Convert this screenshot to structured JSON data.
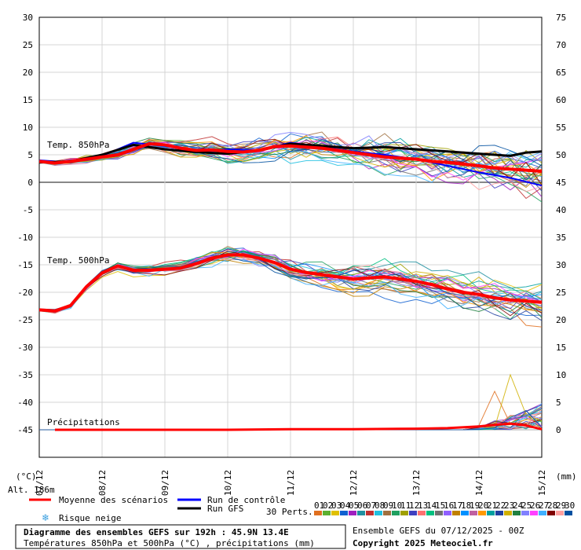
{
  "chart_data": {
    "type": "line",
    "left_axis": {
      "unit": "(°C)",
      "min": -50,
      "max": 30,
      "ticks": [
        30,
        25,
        20,
        15,
        10,
        5,
        0,
        -5,
        -10,
        -15,
        -20,
        -25,
        -30,
        -35,
        -40,
        -45
      ]
    },
    "right_axis": {
      "unit": "(mm)",
      "ticks": [
        75,
        70,
        65,
        60,
        55,
        50,
        45,
        40,
        35,
        30,
        25,
        20,
        15,
        10,
        5,
        0
      ],
      "tick_values_left": [
        30,
        25,
        20,
        15,
        10,
        5,
        0,
        -5,
        -10,
        -15,
        -20,
        -25,
        -30,
        -35,
        -40,
        -45
      ]
    },
    "x_axis": {
      "min": 0,
      "max": 8,
      "date_labels": [
        "07/12",
        "08/12",
        "09/12",
        "10/12",
        "11/12",
        "12/12",
        "13/12",
        "14/12",
        "15/12"
      ]
    },
    "altitude_label": "Alt. 186m",
    "panel_labels": {
      "t850": "Temp. 850hPa",
      "t500": "Temp. 500hPa",
      "precip": "Précipitations"
    },
    "series": [
      {
        "name": "Moyenne des scénarios",
        "role": "t850_mean",
        "color": "#ff0000",
        "x": [
          0,
          0.25,
          0.5,
          0.75,
          1,
          1.25,
          1.5,
          1.75,
          2,
          2.25,
          2.5,
          2.75,
          3,
          3.25,
          3.5,
          3.75,
          4,
          4.25,
          4.5,
          4.75,
          5,
          5.25,
          5.5,
          5.75,
          6,
          6.25,
          6.5,
          6.75,
          7,
          7.25,
          7.5,
          7.75,
          8
        ],
        "y": [
          3.8,
          3.5,
          3.8,
          4.2,
          4.6,
          5.0,
          6.0,
          7.0,
          6.8,
          6.2,
          5.8,
          5.9,
          5.6,
          5.5,
          5.8,
          6.5,
          6.6,
          6.4,
          6.2,
          5.8,
          5.4,
          5.0,
          4.6,
          4.4,
          4.2,
          3.8,
          3.6,
          3.3,
          3.0,
          2.6,
          2.4,
          2.2,
          2.0
        ]
      },
      {
        "name": "Run de contrôle",
        "role": "t850_control",
        "color": "#0000ff",
        "x": [
          0,
          0.5,
          1,
          1.5,
          2,
          2.5,
          3,
          3.5,
          4,
          4.5,
          5,
          5.5,
          6,
          6.5,
          7,
          7.5,
          8
        ],
        "y": [
          4.0,
          3.6,
          4.8,
          7.2,
          6.6,
          5.6,
          6.0,
          5.8,
          7.2,
          6.4,
          5.6,
          5.0,
          4.2,
          3.0,
          1.8,
          0.8,
          -0.6
        ]
      },
      {
        "name": "Run GFS",
        "role": "t850_gfs",
        "color": "#000000",
        "x": [
          0,
          0.5,
          1,
          1.5,
          2,
          2.5,
          3,
          3.5,
          4,
          4.5,
          5,
          5.5,
          6,
          6.5,
          7,
          7.5,
          7.75,
          8
        ],
        "y": [
          3.6,
          3.8,
          5.0,
          6.8,
          6.0,
          5.5,
          5.2,
          5.8,
          7.0,
          6.6,
          6.2,
          6.4,
          6.0,
          5.6,
          5.2,
          4.8,
          5.4,
          5.6
        ]
      },
      {
        "name": "Moyenne des scénarios",
        "role": "t500_mean",
        "color": "#ff0000",
        "x": [
          0,
          0.25,
          0.5,
          0.75,
          1,
          1.25,
          1.5,
          1.75,
          2,
          2.25,
          2.5,
          2.75,
          3,
          3.25,
          3.5,
          3.75,
          4,
          4.25,
          4.5,
          4.75,
          5,
          5.25,
          5.5,
          5.75,
          6,
          6.25,
          6.5,
          6.75,
          7,
          7.25,
          7.5,
          7.75,
          8
        ],
        "y": [
          -23.2,
          -23.4,
          -22.4,
          -19.0,
          -16.5,
          -15.2,
          -16.0,
          -16.0,
          -15.8,
          -15.6,
          -14.8,
          -13.8,
          -13.2,
          -13.2,
          -13.8,
          -14.6,
          -15.8,
          -16.4,
          -16.8,
          -17.2,
          -17.6,
          -17.4,
          -17.2,
          -17.6,
          -18.0,
          -18.6,
          -19.4,
          -20.0,
          -20.4,
          -21.0,
          -21.4,
          -21.6,
          -21.8
        ]
      },
      {
        "name": "Moyenne des scénarios",
        "role": "precip_mean",
        "unit": "mm",
        "color": "#ff0000",
        "x": [
          0.25,
          1,
          2,
          3,
          4,
          5,
          6,
          6.5,
          7,
          7.25,
          7.5,
          7.75,
          8
        ],
        "y": [
          0,
          0,
          0,
          0,
          0.1,
          0.1,
          0.2,
          0.3,
          0.6,
          0.9,
          1.1,
          0.8,
          0.1
        ]
      }
    ],
    "legend": {
      "mean": "Moyenne des scénarios",
      "control": "Run de contrôle",
      "gfs": "Run GFS",
      "snow": "Risque neige",
      "perts_label": "30 Perts.",
      "perts": [
        "01",
        "02",
        "03",
        "04",
        "05",
        "06",
        "07",
        "08",
        "09",
        "10",
        "11",
        "12",
        "13",
        "14",
        "15",
        "16",
        "17",
        "18",
        "19",
        "20",
        "21",
        "22",
        "23",
        "24",
        "25",
        "26",
        "27",
        "28",
        "29",
        "30"
      ],
      "pert_colors": [
        "#e07020",
        "#5cb030",
        "#e0c000",
        "#1060d0",
        "#a020c0",
        "#2090a0",
        "#c03030",
        "#20c0e0",
        "#a07040",
        "#20a060",
        "#a0a000",
        "#4040c0",
        "#ff7070",
        "#00c080",
        "#707070",
        "#9060ff",
        "#c08000",
        "#0090ff",
        "#c060a0",
        "#ff9900",
        "#00a0a0",
        "#2040a0",
        "#d0b000",
        "#208040",
        "#8080ff",
        "#ff40ff",
        "#40b0ff",
        "#800000",
        "#ffa0a0",
        "#0050a0"
      ]
    },
    "title": "Diagramme des ensembles GEFS sur 192h : 45.9N 13.4E",
    "subtitle": "Températures 850hPa et 500hPa (°C) , précipitations (mm)",
    "run_info": "Ensemble GEFS du 07/12/2025 - 00Z",
    "copyright": "Copyright 2025 Meteociel.fr"
  }
}
